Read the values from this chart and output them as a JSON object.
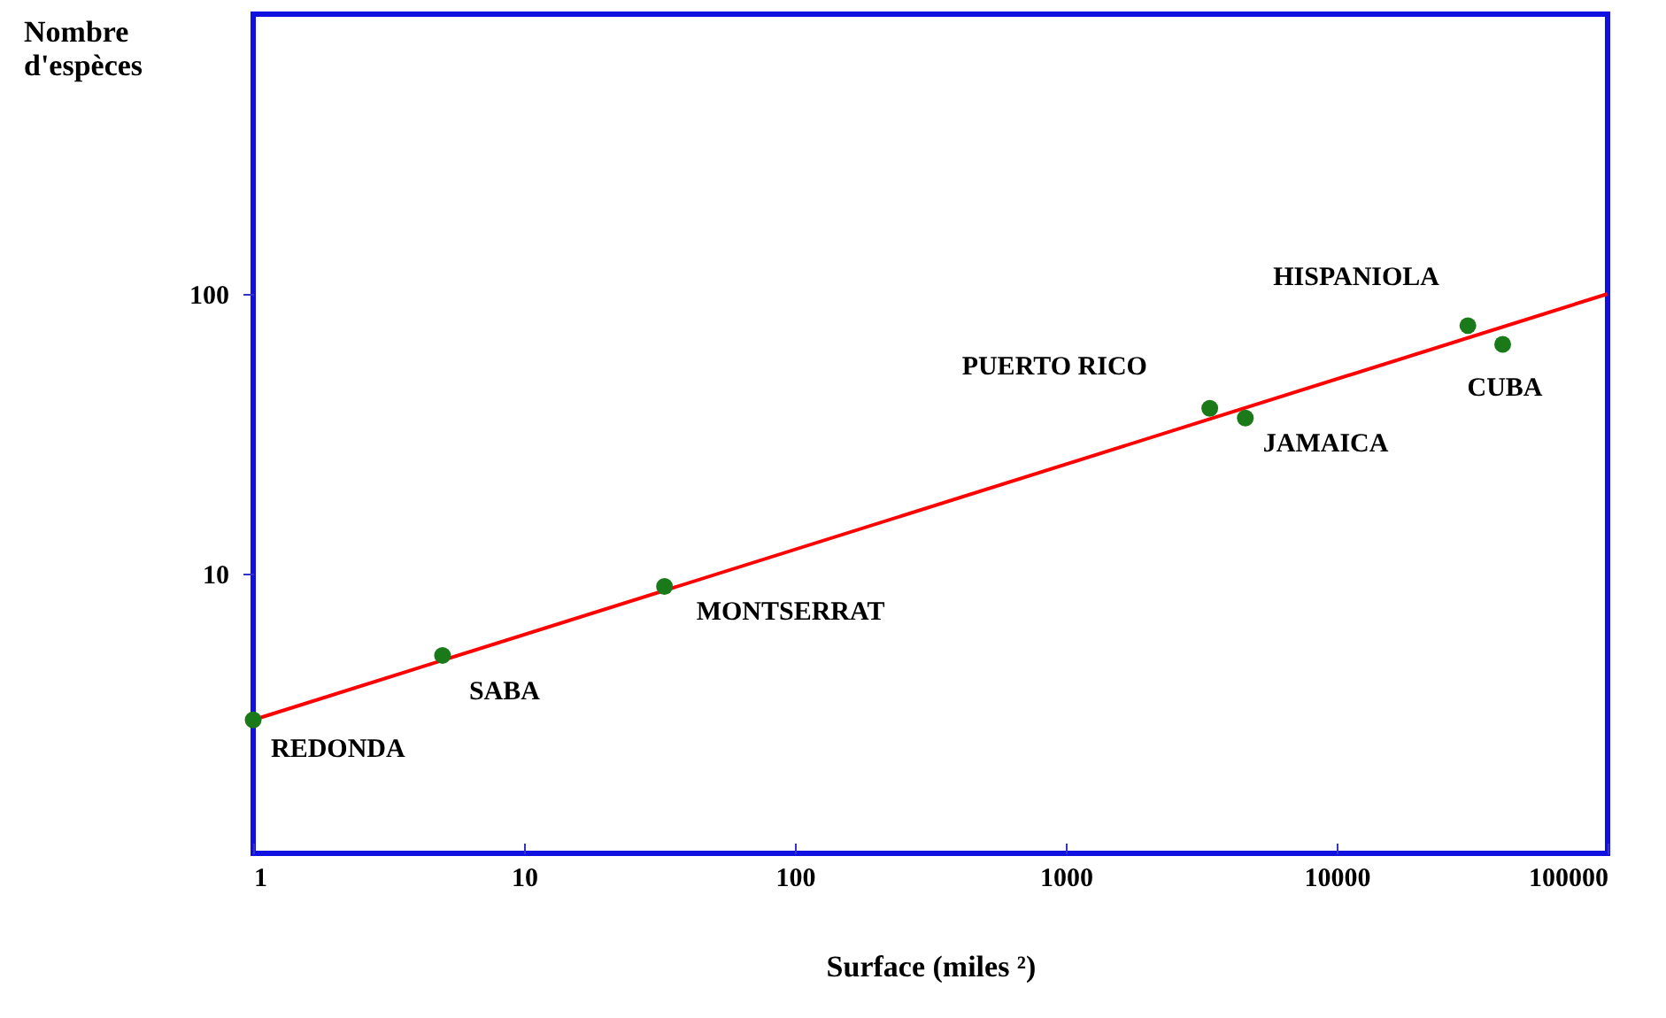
{
  "chart_data": {
    "type": "scatter",
    "xlabel": "Surface (miles ²)",
    "ylabel": "Nombre\nd'espèces",
    "log": "xy",
    "xlim": [
      1,
      100000
    ],
    "xticks": [
      1,
      10,
      100,
      1000,
      10000,
      100000
    ],
    "ylim": [
      1,
      1000
    ],
    "yticks": [
      10,
      100
    ],
    "grid": false,
    "marker": "circle",
    "series": [
      {
        "type": "scatter",
        "color": "#1a7a1a",
        "x": [
          1,
          5,
          33,
          3400,
          4600,
          30500,
          41000
        ],
        "values": [
          3,
          5.1,
          9,
          39,
          36,
          77,
          66
        ]
      },
      {
        "type": "line",
        "color": "#ff0000",
        "line_style": "solid",
        "marker": "none",
        "x": [
          1,
          100000
        ],
        "values": [
          3,
          100
        ]
      }
    ],
    "annotations": [
      {
        "text": "REDONDA",
        "x": 1,
        "y": 3
      },
      {
        "text": "SABA",
        "x": 5,
        "y": 5.1
      },
      {
        "text": "MONTSERRAT",
        "x": 33,
        "y": 9
      },
      {
        "text": "PUERTO RICO",
        "x": 3400,
        "y": 39
      },
      {
        "text": "JAMAICA",
        "x": 4600,
        "y": 36
      },
      {
        "text": "HISPANIOLA",
        "x": 30500,
        "y": 77
      },
      {
        "text": "CUBA",
        "x": 41000,
        "y": 66
      }
    ]
  }
}
